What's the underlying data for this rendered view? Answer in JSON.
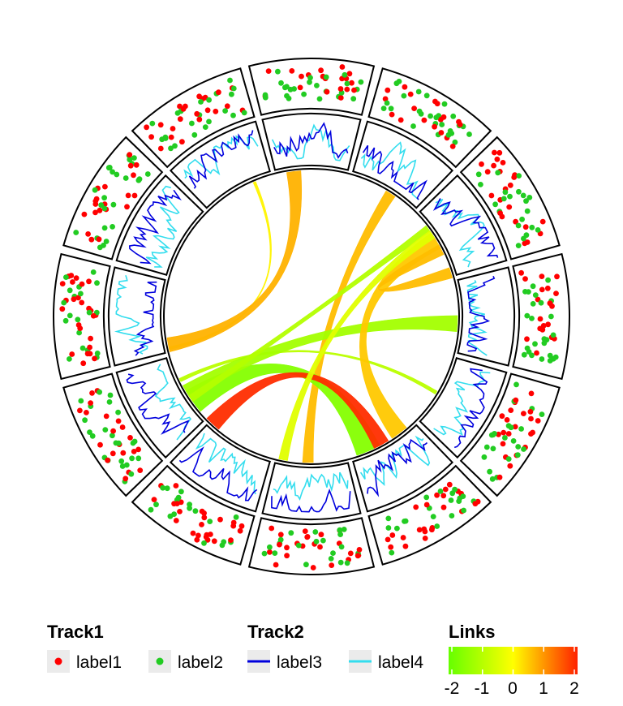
{
  "chart_data": {
    "type": "circos",
    "sectors": 12,
    "colors": {
      "label1": "#ff0000",
      "label2": "#22cc22",
      "label3": "#0000dd",
      "label4": "#33ddee",
      "links_low": "#66ff00",
      "links_mid": "#ffff00",
      "links_high": "#ff2200"
    },
    "tracks": [
      {
        "name": "Track1",
        "kind": "points",
        "series": [
          {
            "label": "label1"
          },
          {
            "label": "label2"
          }
        ]
      },
      {
        "name": "Track2",
        "kind": "lines",
        "series": [
          {
            "label": "label3"
          },
          {
            "label": "label4"
          }
        ]
      }
    ],
    "links": {
      "title": "Links",
      "scale_ticks": [
        -2,
        -1,
        0,
        1,
        2
      ],
      "range": [
        -2,
        2
      ],
      "items": [
        {
          "from": [
            11,
            0.75
          ],
          "to": [
            9,
            0.05
          ],
          "value": 0.1,
          "width": 1.5
        },
        {
          "from": [
            0,
            0.25
          ],
          "to": [
            9,
            0.1
          ],
          "value": 0.7,
          "width": 8
        },
        {
          "from": [
            1,
            0.6
          ],
          "to": [
            6,
            0.55
          ],
          "value": 0.6,
          "width": 6
        },
        {
          "from": [
            8,
            0.3
          ],
          "to": [
            5,
            0.75
          ],
          "value": -1.6,
          "width": 14
        },
        {
          "from": [
            8,
            0.65
          ],
          "to": [
            4,
            0.55
          ],
          "value": -0.9,
          "width": 2
        },
        {
          "from": [
            8,
            0.45
          ],
          "to": [
            3,
            0.6
          ],
          "value": -1.2,
          "width": 9
        },
        {
          "from": [
            7,
            0.95
          ],
          "to": [
            5,
            0.55
          ],
          "value": 1.9,
          "width": 9
        },
        {
          "from": [
            2,
            0.25
          ],
          "to": [
            8,
            0.35
          ],
          "value": -1.0,
          "width": 4
        },
        {
          "from": [
            2,
            0.45
          ],
          "to": [
            5,
            0.25
          ],
          "value": 0.5,
          "width": 10
        },
        {
          "from": [
            2,
            0.6
          ],
          "to": [
            2,
            0.95
          ],
          "value": 0.6,
          "width": 6
        },
        {
          "from": [
            2,
            0.35
          ],
          "to": [
            6,
            0.9
          ],
          "value": -0.4,
          "width": 5
        }
      ]
    }
  },
  "legend": {
    "track1": {
      "title": "Track1",
      "items": [
        "label1",
        "label2"
      ]
    },
    "track2": {
      "title": "Track2",
      "items": [
        "label3",
        "label4"
      ]
    },
    "links": {
      "title": "Links",
      "ticks": [
        "-2",
        "-1",
        "0",
        "1",
        "2"
      ]
    }
  }
}
